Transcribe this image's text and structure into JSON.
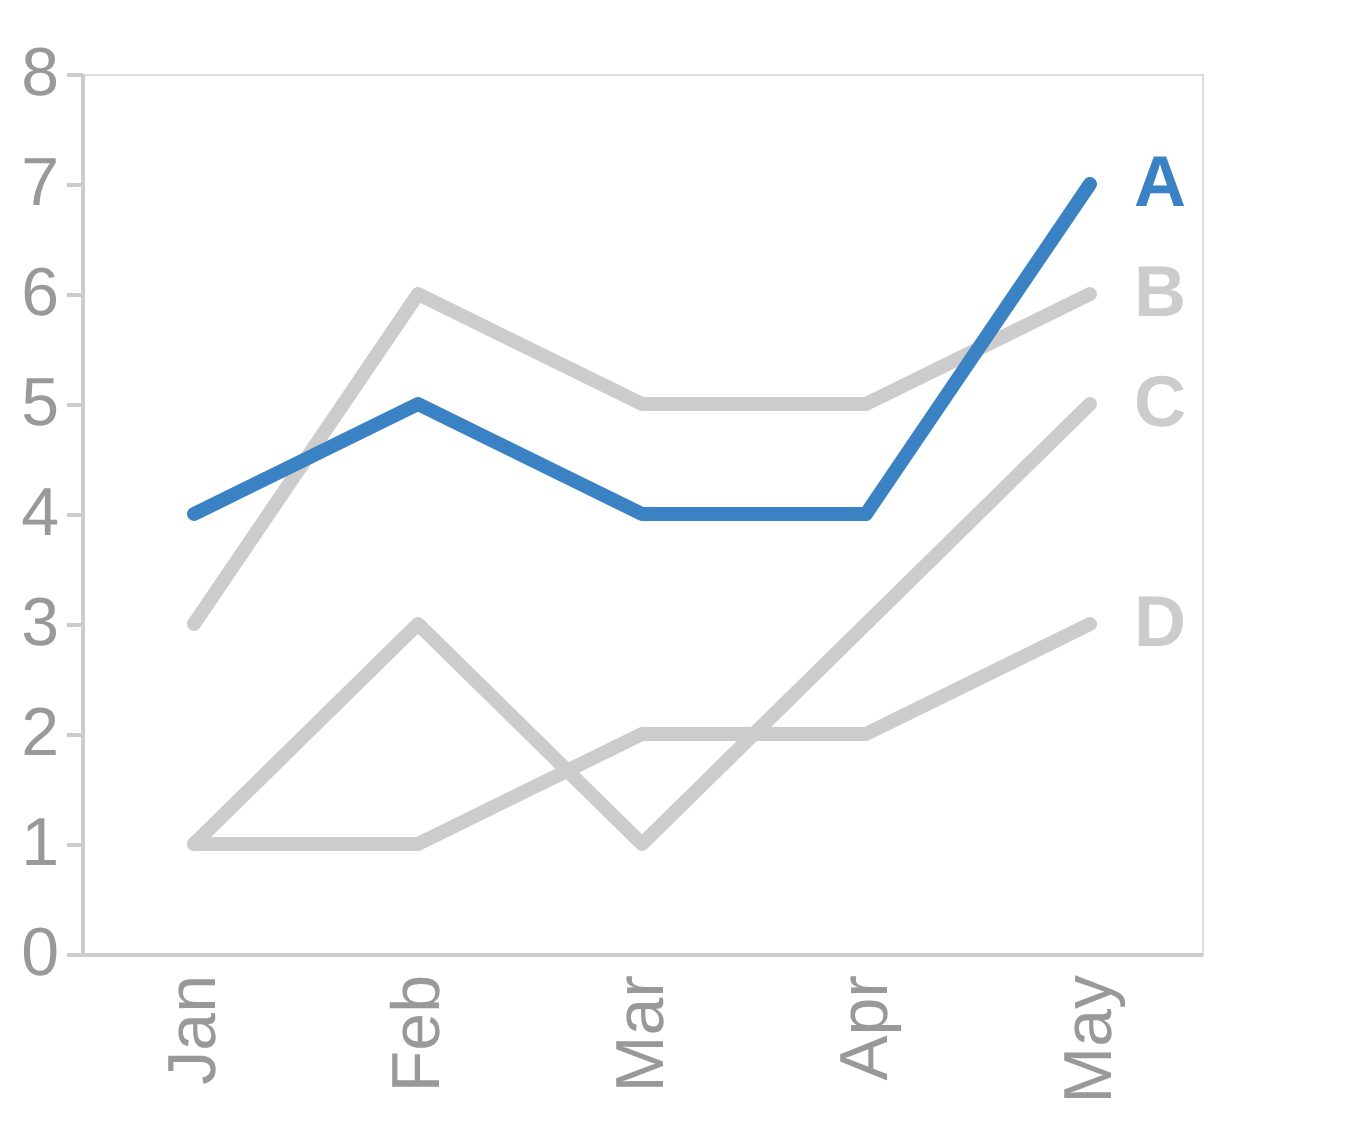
{
  "chart_data": {
    "type": "line",
    "categories": [
      "Jan",
      "Feb",
      "Mar",
      "Apr",
      "May"
    ],
    "series": [
      {
        "name": "A",
        "color": "#3b82c4",
        "values": [
          4,
          5,
          4,
          4,
          7
        ]
      },
      {
        "name": "B",
        "color": "#cccccc",
        "values": [
          3,
          6,
          5,
          5,
          6
        ]
      },
      {
        "name": "C",
        "color": "#cccccc",
        "values": [
          1,
          3,
          1,
          3,
          5
        ]
      },
      {
        "name": "D",
        "color": "#cccccc",
        "values": [
          1,
          1,
          2,
          2,
          3
        ]
      }
    ],
    "ylim": [
      0,
      8
    ],
    "yticks": [
      0,
      1,
      2,
      3,
      4,
      5,
      6,
      7,
      8
    ],
    "grid": false,
    "legend": false,
    "marker": "none",
    "line_style": "solid"
  }
}
